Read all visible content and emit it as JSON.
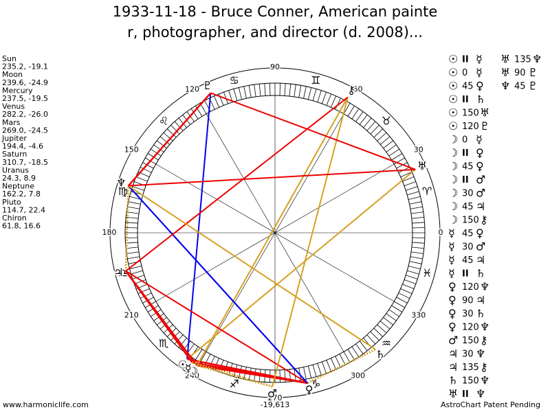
{
  "title": [
    "1933-11-18 - Bruce Conner, American painte",
    "r, photographer, and director (d. 2008)..."
  ],
  "planets": [
    {
      "name": "Sun",
      "position": "235.2, -19.1",
      "glyph": "☉"
    },
    {
      "name": "Moon",
      "position": "239.6, -24.9",
      "glyph": "☽"
    },
    {
      "name": "Mercury",
      "position": "237.5, -19.5",
      "glyph": "☿"
    },
    {
      "name": "Venus",
      "position": "282.2, -26.0",
      "glyph": "♀"
    },
    {
      "name": "Mars",
      "position": "269.0, -24.5",
      "glyph": "♂"
    },
    {
      "name": "Jupiter",
      "position": "194.4, -4.6",
      "glyph": "♃"
    },
    {
      "name": "Saturn",
      "position": "310.7, -18.5",
      "glyph": "♄"
    },
    {
      "name": "Uranus",
      "position": "24.3, 8.9",
      "glyph": "♅"
    },
    {
      "name": "Neptune",
      "position": "162.2, 7.8",
      "glyph": "♆"
    },
    {
      "name": "Pluto",
      "position": "114.7, 22.4",
      "glyph": "♇"
    },
    {
      "name": "Chiron",
      "position": "61.8, 16.6",
      "glyph": "⚷"
    }
  ],
  "chart": {
    "degree_labels": [
      0,
      30,
      60,
      90,
      120,
      150,
      180,
      210,
      240,
      270,
      300,
      330
    ],
    "signs": [
      "♈",
      "♉",
      "♊",
      "♋",
      "♌",
      "♍",
      "♎",
      "♏",
      "♐",
      "♑",
      "♒",
      "♓"
    ],
    "marker_label": "-19,613"
  },
  "aspects": [
    [
      [
        "☉",
        "II",
        "☿"
      ],
      [
        "☉",
        "0",
        "☿"
      ],
      [
        "☉",
        "45",
        "♀"
      ],
      [
        "☉",
        "II",
        "♄"
      ],
      [
        "☉",
        "150",
        "♅"
      ],
      [
        "☉",
        "120",
        "♇"
      ],
      [
        "☽",
        "0",
        "☿"
      ],
      [
        "☽",
        "II",
        "♀"
      ],
      [
        "☽",
        "45",
        "♀"
      ],
      [
        "☽",
        "II",
        "♂"
      ],
      [
        "☽",
        "30",
        "♂"
      ],
      [
        "☽",
        "45",
        "♃"
      ],
      [
        "☽",
        "150",
        "⚷"
      ],
      [
        "☿",
        "45",
        "♀"
      ],
      [
        "☿",
        "30",
        "♂"
      ],
      [
        "☿",
        "45",
        "♃"
      ],
      [
        "☿",
        "II",
        "♄"
      ],
      [
        "♀",
        "120",
        "♆"
      ],
      [
        "♀",
        "90",
        "♃"
      ],
      [
        "♀",
        "30",
        "♄"
      ],
      [
        "♀",
        "120",
        "♆"
      ],
      [
        "♂",
        "150",
        "⚷"
      ],
      [
        "♃",
        "30",
        "♆"
      ],
      [
        "♃",
        "135",
        "⚷"
      ],
      [
        "♄",
        "150",
        "♆"
      ],
      [
        "♅",
        "II",
        "♆"
      ]
    ],
    [
      [
        "♅",
        "135",
        "♆"
      ],
      [
        "♅",
        "90",
        "♇"
      ],
      [
        "♆",
        "45",
        "♇"
      ]
    ]
  ],
  "footer": {
    "left": "www.harmoniclife.com",
    "right": "AstroChart Patent Pending"
  }
}
